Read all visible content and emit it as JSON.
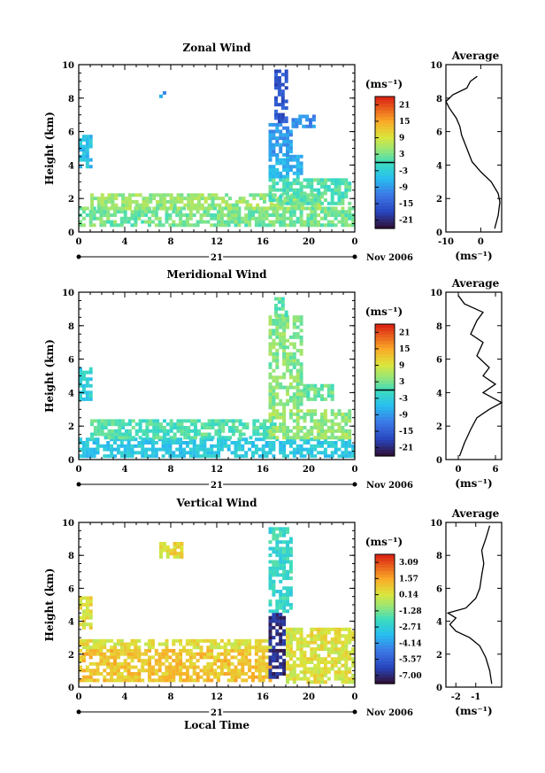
{
  "figure": {
    "xlabel": "Local Time",
    "date_label": "Nov 2006",
    "day_label": "21",
    "ylabel": "Height (km)",
    "avg_title": "Average",
    "units": "(ms⁻¹)",
    "avg_xlabel": "(ms⁻¹)"
  },
  "chart_data": [
    {
      "type": "heatmap",
      "title": "Zonal Wind",
      "xlabel": "",
      "ylabel": "Height (km)",
      "x_ticks": [
        "0",
        "4",
        "8",
        "12",
        "16",
        "20",
        "0"
      ],
      "y_ticks": [
        "0",
        "2",
        "4",
        "6",
        "8",
        "10"
      ],
      "xlim": [
        0,
        24
      ],
      "ylim": [
        0,
        10
      ],
      "colorbar_label": "(ms⁻¹)",
      "colorbar_ticks": [
        "21",
        "15",
        "9",
        "3",
        "-3",
        "-9",
        "-15",
        "-21"
      ],
      "vmin": -24,
      "vmax": 24,
      "regions": [
        {
          "x": [
            0,
            24
          ],
          "y": [
            0.3,
            1.3
          ],
          "v": 3
        },
        {
          "x": [
            1,
            21
          ],
          "y": [
            1.3,
            2.3
          ],
          "v": 5
        },
        {
          "x": [
            16.5,
            23.5
          ],
          "y": [
            1.6,
            3.2
          ],
          "v": 1
        },
        {
          "x": [
            16.5,
            19.5
          ],
          "y": [
            3.2,
            4.5
          ],
          "v": -6
        },
        {
          "x": [
            16.5,
            18.5
          ],
          "y": [
            4.5,
            6.5
          ],
          "v": -9
        },
        {
          "x": [
            17,
            18
          ],
          "y": [
            6.5,
            9.5
          ],
          "v": -16
        },
        {
          "x": [
            18.5,
            20.5
          ],
          "y": [
            6.2,
            7.0
          ],
          "v": -10
        },
        {
          "x": [
            0,
            1
          ],
          "y": [
            3.8,
            5.8
          ],
          "v": -5
        },
        {
          "x": [
            7,
            7.5
          ],
          "y": [
            7.8,
            8.3
          ],
          "v": -9
        }
      ],
      "average": {
        "xlim": [
          -10,
          6
        ],
        "x_ticks": [
          "-10",
          "0"
        ],
        "ylim": [
          0,
          10
        ],
        "y_ticks": [
          "0",
          "2",
          "4",
          "6",
          "8",
          "10"
        ],
        "x": [
          4,
          5,
          5.5,
          5,
          3,
          0,
          -2.5,
          -4,
          -5.5,
          -6,
          -7,
          -9,
          -10,
          -8,
          -4,
          -3,
          -1
        ],
        "y": [
          0.2,
          1.0,
          1.8,
          2.3,
          3.0,
          3.6,
          4.2,
          5.0,
          5.8,
          6.3,
          6.8,
          7.4,
          7.8,
          8.2,
          8.6,
          9.0,
          9.3
        ]
      }
    },
    {
      "type": "heatmap",
      "title": "Meridional Wind",
      "xlabel": "",
      "ylabel": "Height (km)",
      "x_ticks": [
        "0",
        "4",
        "8",
        "12",
        "16",
        "20",
        "0"
      ],
      "y_ticks": [
        "0",
        "2",
        "4",
        "6",
        "8",
        "10"
      ],
      "xlim": [
        0,
        24
      ],
      "ylim": [
        0,
        10
      ],
      "colorbar_label": "(ms⁻¹)",
      "colorbar_ticks": [
        "21",
        "15",
        "9",
        "3",
        "-3",
        "-9",
        "-15",
        "-21"
      ],
      "vmin": -24,
      "vmax": 24,
      "regions": [
        {
          "x": [
            0,
            24
          ],
          "y": [
            0.1,
            1.2
          ],
          "v": -4
        },
        {
          "x": [
            1,
            17
          ],
          "y": [
            1.2,
            2.3
          ],
          "v": 1
        },
        {
          "x": [
            16.5,
            23.5
          ],
          "y": [
            1.2,
            3.0
          ],
          "v": 5
        },
        {
          "x": [
            16.5,
            19.5
          ],
          "y": [
            3.0,
            8.5
          ],
          "v": 4
        },
        {
          "x": [
            17,
            18
          ],
          "y": [
            8.5,
            9.5
          ],
          "v": 2
        },
        {
          "x": [
            19.5,
            22
          ],
          "y": [
            3.5,
            4.5
          ],
          "v": 3
        },
        {
          "x": [
            0,
            1
          ],
          "y": [
            3.5,
            5.5
          ],
          "v": -3
        }
      ],
      "average": {
        "xlim": [
          -2,
          7
        ],
        "x_ticks": [
          "0",
          "6"
        ],
        "ylim": [
          0,
          10
        ],
        "y_ticks": [
          "0",
          "2",
          "4",
          "6",
          "8",
          "10"
        ],
        "x": [
          0.2,
          1,
          2,
          3,
          5,
          7,
          4,
          6,
          4,
          5,
          3,
          4,
          2,
          3,
          4,
          1,
          0
        ],
        "y": [
          0.2,
          1.0,
          1.8,
          2.5,
          3.0,
          3.4,
          4.0,
          4.5,
          5.0,
          5.5,
          6.2,
          7.0,
          7.5,
          8.3,
          8.8,
          9.3,
          9.8
        ]
      }
    },
    {
      "type": "heatmap",
      "title": "Vertical Wind",
      "xlabel": "Local Time",
      "ylabel": "Height (km)",
      "x_ticks": [
        "0",
        "4",
        "8",
        "12",
        "16",
        "20",
        "0"
      ],
      "y_ticks": [
        "0",
        "2",
        "4",
        "6",
        "8",
        "10"
      ],
      "xlim": [
        0,
        24
      ],
      "ylim": [
        0,
        10
      ],
      "colorbar_label": "(ms⁻¹)",
      "colorbar_ticks": [
        "3.09",
        "1.57",
        "0.14",
        "-1.28",
        "-2.71",
        "-4.14",
        "-5.57",
        "-7.00"
      ],
      "vmin": -7.7,
      "vmax": 3.8,
      "regions": [
        {
          "x": [
            0,
            16.8
          ],
          "y": [
            0.3,
            2.3
          ],
          "v": 1.2
        },
        {
          "x": [
            0,
            16.8
          ],
          "y": [
            2.3,
            2.8
          ],
          "v": 0.5
        },
        {
          "x": [
            16.5,
            18
          ],
          "y": [
            0.5,
            4.5
          ],
          "v": -7
        },
        {
          "x": [
            18,
            24
          ],
          "y": [
            0.2,
            3.5
          ],
          "v": 0.4
        },
        {
          "x": [
            16.5,
            18.5
          ],
          "y": [
            4.5,
            9.5
          ],
          "v": -2.2
        },
        {
          "x": [
            0,
            1
          ],
          "y": [
            3.5,
            5.5
          ],
          "v": 0.5
        },
        {
          "x": [
            7,
            9
          ],
          "y": [
            7.8,
            8.6
          ],
          "v": 0.6
        }
      ],
      "average": {
        "xlim": [
          -2.5,
          0.3
        ],
        "x_ticks": [
          "-2",
          "-1"
        ],
        "ylim": [
          0,
          10
        ],
        "y_ticks": [
          "0",
          "2",
          "4",
          "6",
          "8",
          "10"
        ],
        "x": [
          -0.2,
          -0.3,
          -0.5,
          -0.8,
          -1.3,
          -2.0,
          -2.3,
          -2.0,
          -2.4,
          -1.5,
          -1.0,
          -0.8,
          -0.7,
          -0.6,
          -0.7,
          -0.5,
          -0.3
        ],
        "y": [
          0.2,
          1.0,
          1.8,
          2.5,
          3.0,
          3.4,
          3.8,
          4.2,
          4.5,
          4.8,
          5.4,
          6.0,
          6.8,
          7.5,
          8.3,
          9.0,
          9.8
        ]
      }
    }
  ]
}
